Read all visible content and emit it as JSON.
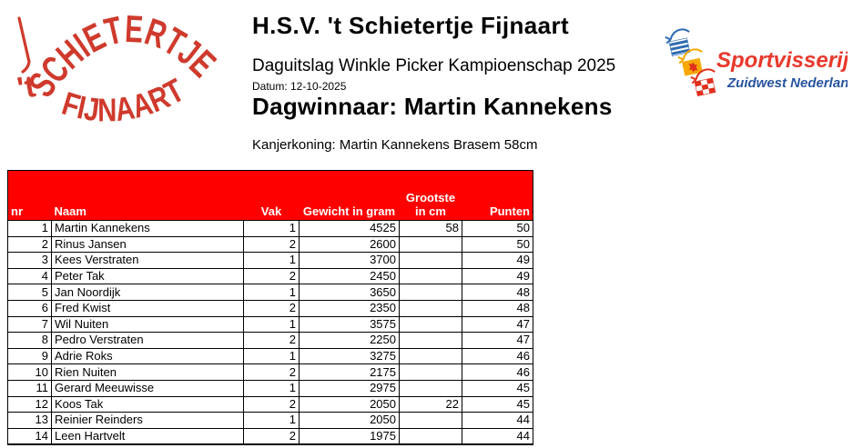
{
  "header": {
    "title": "H.S.V. 't Schietertje Fijnaart",
    "subtitle": "Daguitslag Winkle Picker Kampioenschap 2025",
    "date_line": "Datum: 12-10-2025",
    "winner_line": "Dagwinnaar: Martin Kannekens",
    "kanjerkoning_line": "Kanjerkoning: Martin Kannekens Brasem 58cm"
  },
  "logo_left": {
    "prefix": "'t",
    "word_top": "SCHIETERTJE",
    "word_bottom": "FIJNAART",
    "color": "#cf3a2c"
  },
  "logo_right": {
    "name": "Sportvisserij",
    "region": "Zuidwest Nederland",
    "name_color": "#e8392c",
    "region_color": "#28549f"
  },
  "table": {
    "header_bg": "#ff0000",
    "highlight_bg": "#ffff00",
    "columns": [
      {
        "key": "nr",
        "label": "nr"
      },
      {
        "key": "naam",
        "label": "Naam"
      },
      {
        "key": "vak",
        "label": "Vak"
      },
      {
        "key": "gewicht",
        "label": "Gewicht in gram"
      },
      {
        "key": "grootste",
        "label": "Grootste in cm"
      },
      {
        "key": "punten",
        "label": "Punten"
      }
    ],
    "rows": [
      {
        "nr": "1",
        "naam": "Martin Kannekens",
        "vak": "1",
        "gewicht": "4525",
        "grootste": "58",
        "punten": "50",
        "highlight": true
      },
      {
        "nr": "2",
        "naam": "Rinus Jansen",
        "vak": "2",
        "gewicht": "2600",
        "grootste": "",
        "punten": "50",
        "highlight": true
      },
      {
        "nr": "3",
        "naam": "Kees Verstraten",
        "vak": "1",
        "gewicht": "3700",
        "grootste": "",
        "punten": "49",
        "highlight": true
      },
      {
        "nr": "4",
        "naam": "Peter Tak",
        "vak": "2",
        "gewicht": "2450",
        "grootste": "",
        "punten": "49",
        "highlight": false
      },
      {
        "nr": "5",
        "naam": "Jan Noordijk",
        "vak": "1",
        "gewicht": "3650",
        "grootste": "",
        "punten": "48",
        "highlight": false
      },
      {
        "nr": "6",
        "naam": "Fred Kwist",
        "vak": "2",
        "gewicht": "2350",
        "grootste": "",
        "punten": "48",
        "highlight": false
      },
      {
        "nr": "7",
        "naam": "Wil Nuiten",
        "vak": "1",
        "gewicht": "3575",
        "grootste": "",
        "punten": "47",
        "highlight": false
      },
      {
        "nr": "8",
        "naam": "Pedro Verstraten",
        "vak": "2",
        "gewicht": "2250",
        "grootste": "",
        "punten": "47",
        "highlight": false
      },
      {
        "nr": "9",
        "naam": "Adrie Roks",
        "vak": "1",
        "gewicht": "3275",
        "grootste": "",
        "punten": "46",
        "highlight": false
      },
      {
        "nr": "10",
        "naam": "Rien Nuiten",
        "vak": "2",
        "gewicht": "2175",
        "grootste": "",
        "punten": "46",
        "highlight": false
      },
      {
        "nr": "11",
        "naam": "Gerard Meeuwisse",
        "vak": "1",
        "gewicht": "2975",
        "grootste": "",
        "punten": "45",
        "highlight": false
      },
      {
        "nr": "12",
        "naam": "Koos Tak",
        "vak": "2",
        "gewicht": "2050",
        "grootste": "22",
        "punten": "45",
        "highlight": false
      },
      {
        "nr": "13",
        "naam": "Reinier Reinders",
        "vak": "1",
        "gewicht": "2050",
        "grootste": "",
        "punten": "44",
        "highlight": false
      },
      {
        "nr": "14",
        "naam": "Leen Hartvelt",
        "vak": "2",
        "gewicht": "1975",
        "grootste": "",
        "punten": "44",
        "highlight": false
      }
    ]
  }
}
